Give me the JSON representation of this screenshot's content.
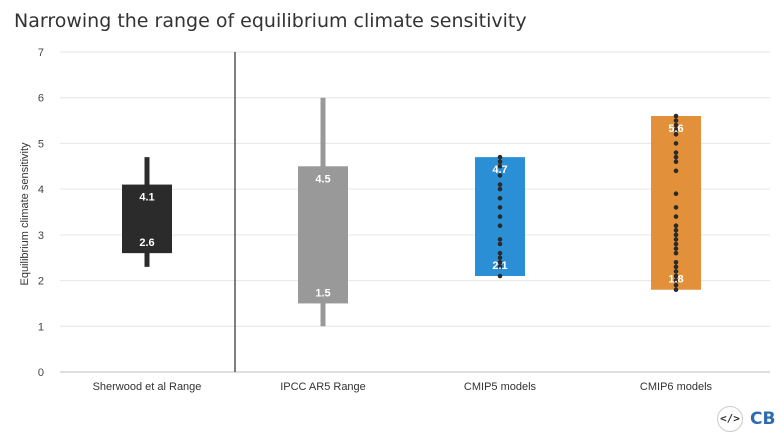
{
  "chart_data": {
    "type": "box",
    "title": "Narrowing the range of equilibrium climate sensitivity",
    "ylabel": "Equilibrium climate sensitivity",
    "xlabel": "",
    "ylim": [
      0,
      7
    ],
    "yticks": [
      "0",
      "1",
      "2",
      "3",
      "4",
      "5",
      "6",
      "7"
    ],
    "grid": true,
    "categories": [
      "Sherwood et al Range",
      "IPCC AR5 Range",
      "CMIP5 models",
      "CMIP6 models"
    ],
    "series": [
      {
        "category": "Sherwood et al Range",
        "color": "#2b2b2b",
        "whisker_low": 2.3,
        "box_low": 2.6,
        "box_high": 4.1,
        "whisker_high": 4.7,
        "labels": {
          "high": "4.1",
          "low": "2.6"
        },
        "models": []
      },
      {
        "category": "IPCC AR5 Range",
        "color": "#999999",
        "whisker_low": 1.0,
        "box_low": 1.5,
        "box_high": 4.5,
        "whisker_high": 6.0,
        "labels": {
          "high": "4.5",
          "low": "1.5"
        },
        "models": []
      },
      {
        "category": "CMIP5 models",
        "color": "#2b8fd6",
        "box_low": 2.1,
        "box_high": 4.7,
        "labels": {
          "high": "4.7",
          "low": "2.1"
        },
        "models": [
          2.1,
          2.3,
          2.4,
          2.5,
          2.6,
          2.8,
          2.9,
          3.2,
          3.4,
          3.6,
          3.8,
          4.0,
          4.1,
          4.3,
          4.5,
          4.6,
          4.7
        ]
      },
      {
        "category": "CMIP6 models",
        "color": "#e2913a",
        "box_low": 1.8,
        "box_high": 5.6,
        "labels": {
          "high": "5.6",
          "low": "1.8"
        },
        "models": [
          1.8,
          1.9,
          2.0,
          2.1,
          2.2,
          2.3,
          2.4,
          2.6,
          2.7,
          2.8,
          2.9,
          3.0,
          3.1,
          3.2,
          3.4,
          3.6,
          3.9,
          4.4,
          4.6,
          4.7,
          4.8,
          5.0,
          5.2,
          5.3,
          5.4,
          5.5,
          5.6
        ]
      }
    ]
  },
  "branding": {
    "embed_icon": "</>",
    "logo_text": "CB"
  }
}
